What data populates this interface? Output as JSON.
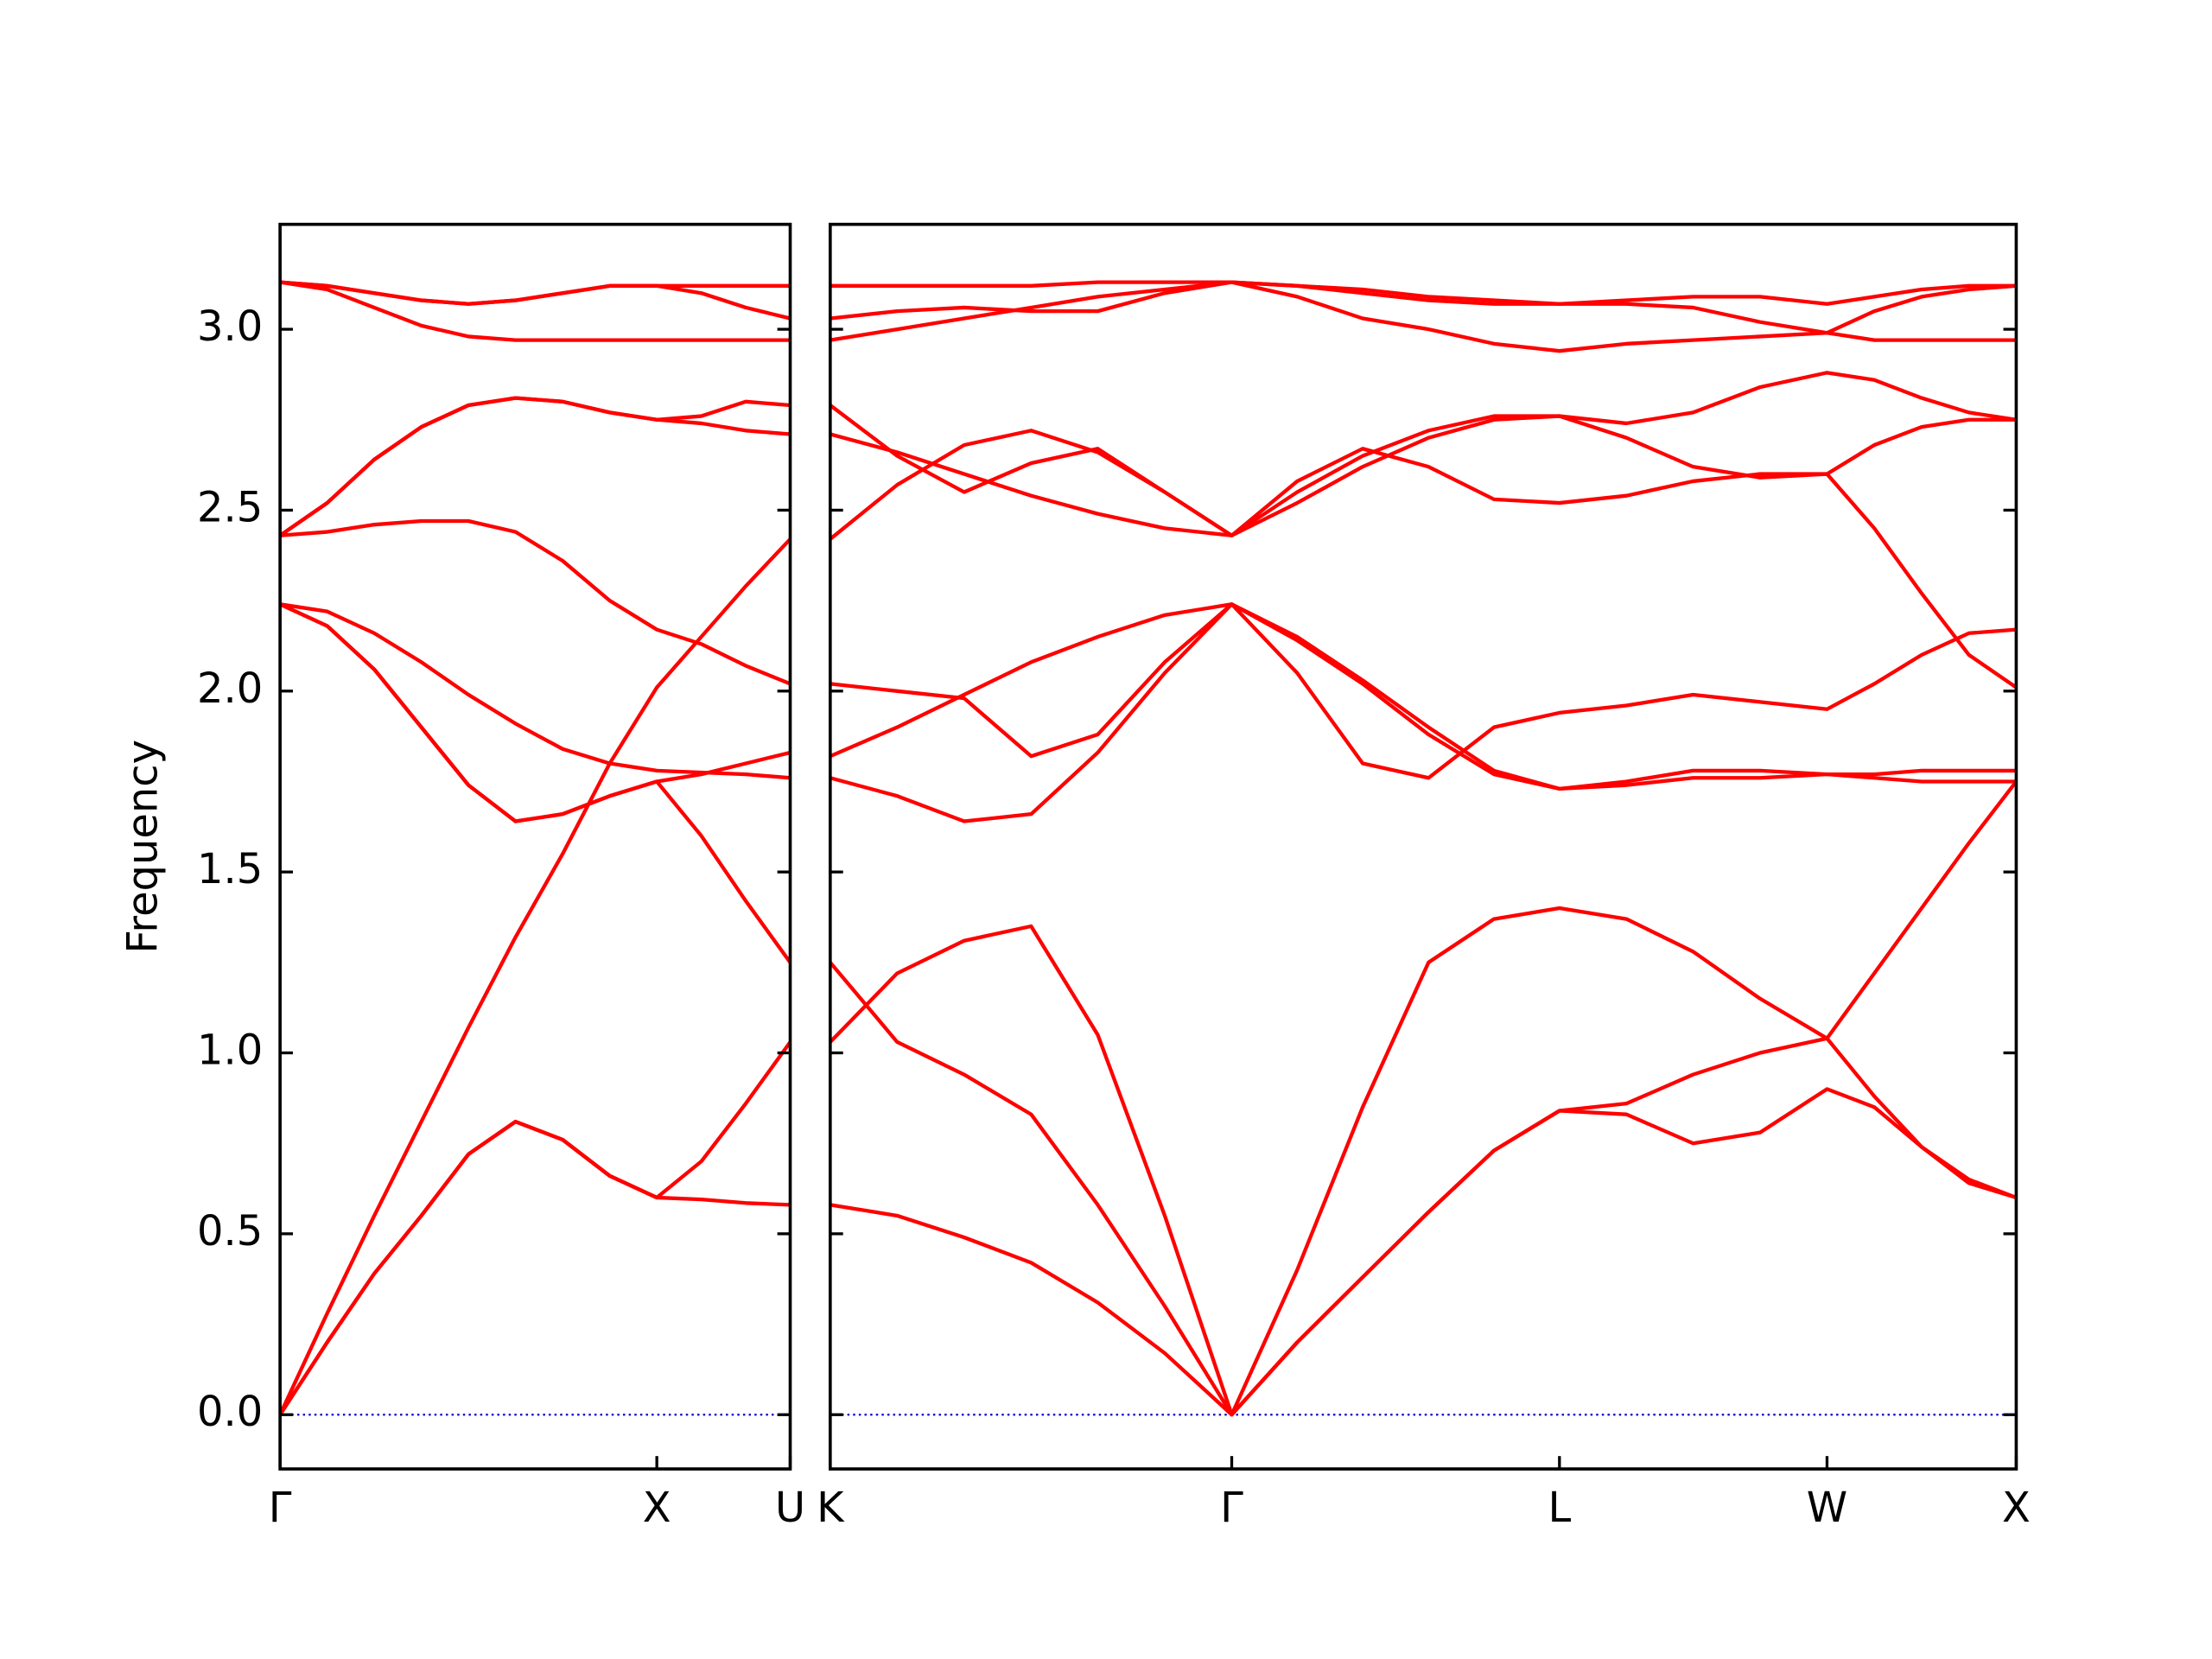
{
  "chart_data": [
    {
      "type": "line",
      "ylabel": "Frequency",
      "color": "#ff0000",
      "zero_line": true,
      "zero_line_color": "#0000cd",
      "ytick_labels": true,
      "xlim": [
        0,
        1.354
      ],
      "ylim": [
        -0.15,
        3.29
      ],
      "xticks": [
        {
          "value": 0,
          "label": "Γ"
        },
        {
          "value": 1,
          "label": "X"
        },
        {
          "value": 1.354,
          "label": "U"
        }
      ],
      "yticks": [
        {
          "value": 0,
          "label": "0.0"
        },
        0.5,
        {
          "value": 1,
          "label": "1.0"
        },
        1.5,
        {
          "value": 2,
          "label": "2.0"
        },
        2.5,
        {
          "value": 3,
          "label": "3.0"
        }
      ],
      "x": [
        0,
        0.125,
        0.25,
        0.375,
        0.5,
        0.625,
        0.75,
        0.875,
        1,
        1.118,
        1.236,
        1.354
      ],
      "series": [
        {
          "values": [
            0,
            0.2,
            0.39,
            0.55,
            0.72,
            0.81,
            0.76,
            0.66,
            0.6,
            0.595,
            0.585,
            0.58
          ]
        },
        {
          "values": [
            0,
            0.2,
            0.39,
            0.55,
            0.72,
            0.81,
            0.76,
            0.66,
            0.6,
            0.7,
            0.86,
            1.03
          ]
        },
        {
          "values": [
            0,
            0.28,
            0.55,
            0.81,
            1.07,
            1.32,
            1.55,
            1.8,
            2.01,
            2.15,
            2.29,
            2.42
          ]
        },
        {
          "values": [
            2.24,
            2.18,
            2.06,
            1.9,
            1.74,
            1.64,
            1.66,
            1.71,
            1.75,
            1.6,
            1.42,
            1.25
          ]
        },
        {
          "values": [
            2.24,
            2.18,
            2.06,
            1.9,
            1.74,
            1.64,
            1.66,
            1.71,
            1.75,
            1.77,
            1.8,
            1.83
          ]
        },
        {
          "values": [
            2.24,
            2.22,
            2.16,
            2.08,
            1.99,
            1.91,
            1.84,
            1.8,
            1.78,
            1.775,
            1.77,
            1.76
          ]
        },
        {
          "values": [
            2.43,
            2.44,
            2.46,
            2.47,
            2.47,
            2.44,
            2.36,
            2.25,
            2.17,
            2.13,
            2.07,
            2.02
          ]
        },
        {
          "values": [
            2.43,
            2.52,
            2.64,
            2.73,
            2.79,
            2.81,
            2.8,
            2.77,
            2.75,
            2.76,
            2.8,
            2.79
          ]
        },
        {
          "values": [
            2.43,
            2.52,
            2.64,
            2.73,
            2.79,
            2.81,
            2.8,
            2.77,
            2.75,
            2.74,
            2.72,
            2.71
          ]
        },
        {
          "values": [
            3.13,
            3.11,
            3.06,
            3.01,
            2.98,
            2.97,
            2.97,
            2.97,
            2.97,
            2.97,
            2.97,
            2.97
          ]
        },
        {
          "values": [
            3.13,
            3.12,
            3.1,
            3.08,
            3.07,
            3.08,
            3.1,
            3.12,
            3.12,
            3.12,
            3.12,
            3.12
          ]
        },
        {
          "values": [
            3.13,
            3.12,
            3.1,
            3.08,
            3.07,
            3.08,
            3.1,
            3.12,
            3.12,
            3.1,
            3.06,
            3.03
          ]
        }
      ]
    },
    {
      "type": "line",
      "color": "#ff0000",
      "zero_line": true,
      "zero_line_color": "#0000cd",
      "ytick_labels": false,
      "xlim": [
        1.354,
        4.488
      ],
      "ylim": [
        -0.15,
        3.29
      ],
      "xticks": [
        {
          "value": 1.354,
          "label": "K"
        },
        {
          "value": 2.415,
          "label": "Γ"
        },
        {
          "value": 3.281,
          "label": "L"
        },
        {
          "value": 3.988,
          "label": "W"
        },
        {
          "value": 4.488,
          "label": "X"
        }
      ],
      "yticks": [
        0,
        0.5,
        1,
        1.5,
        2,
        2.5,
        3
      ],
      "x": [
        1.354,
        1.531,
        1.708,
        1.885,
        2.061,
        2.238,
        2.415,
        2.588,
        2.761,
        2.935,
        3.108,
        3.281,
        3.458,
        3.634,
        3.811,
        3.988,
        4.113,
        4.238,
        4.363,
        4.488
      ],
      "series": [
        {
          "values": [
            0.58,
            0.55,
            0.49,
            0.42,
            0.31,
            0.17,
            0,
            0.2,
            0.38,
            0.56,
            0.73,
            0.84,
            0.83,
            0.75,
            0.78,
            0.9,
            0.85,
            0.74,
            0.64,
            0.6
          ]
        },
        {
          "values": [
            1.25,
            1.03,
            0.94,
            0.83,
            0.58,
            0.3,
            0,
            0.4,
            0.85,
            1.25,
            1.37,
            1.4,
            1.37,
            1.28,
            1.15,
            1.04,
            0.88,
            0.74,
            0.65,
            0.6
          ]
        },
        {
          "values": [
            1.03,
            1.22,
            1.31,
            1.35,
            1.05,
            0.55,
            0,
            0.2,
            0.38,
            0.56,
            0.73,
            0.84,
            0.86,
            0.94,
            1,
            1.04,
            1.22,
            1.4,
            1.58,
            1.75
          ]
        },
        {
          "values": [
            1.76,
            1.71,
            1.64,
            1.66,
            1.83,
            2.05,
            2.24,
            2.05,
            1.8,
            1.76,
            1.9,
            1.94,
            1.96,
            1.99,
            1.97,
            1.95,
            2.02,
            2.1,
            2.16,
            2.17
          ]
        },
        {
          "values": [
            1.82,
            1.9,
            1.99,
            2.08,
            2.15,
            2.21,
            2.24,
            2.15,
            2.03,
            1.9,
            1.78,
            1.73,
            1.75,
            1.78,
            1.78,
            1.77,
            1.77,
            1.78,
            1.78,
            1.78
          ]
        },
        {
          "values": [
            2.02,
            2,
            1.98,
            1.82,
            1.88,
            2.08,
            2.24,
            2.14,
            2.02,
            1.88,
            1.77,
            1.73,
            1.74,
            1.76,
            1.76,
            1.77,
            1.76,
            1.75,
            1.75,
            1.75
          ]
        },
        {
          "values": [
            2.42,
            2.57,
            2.68,
            2.72,
            2.66,
            2.55,
            2.43,
            2.55,
            2.65,
            2.72,
            2.76,
            2.76,
            2.74,
            2.77,
            2.84,
            2.88,
            2.86,
            2.81,
            2.77,
            2.75
          ]
        },
        {
          "values": [
            2.71,
            2.66,
            2.6,
            2.54,
            2.49,
            2.45,
            2.43,
            2.58,
            2.67,
            2.62,
            2.53,
            2.52,
            2.54,
            2.58,
            2.6,
            2.6,
            2.68,
            2.73,
            2.75,
            2.75
          ]
        },
        {
          "values": [
            2.79,
            2.65,
            2.55,
            2.63,
            2.67,
            2.55,
            2.43,
            2.52,
            2.62,
            2.7,
            2.75,
            2.76,
            2.7,
            2.62,
            2.59,
            2.6,
            2.45,
            2.27,
            2.1,
            2.01
          ]
        },
        {
          "values": [
            3.12,
            3.12,
            3.12,
            3.12,
            3.13,
            3.13,
            3.13,
            3.12,
            3.11,
            3.09,
            3.08,
            3.07,
            3.08,
            3.09,
            3.09,
            3.07,
            3.09,
            3.11,
            3.12,
            3.12
          ]
        },
        {
          "values": [
            3.03,
            3.05,
            3.06,
            3.05,
            3.05,
            3.1,
            3.13,
            3.09,
            3.03,
            3,
            2.96,
            2.94,
            2.96,
            2.97,
            2.98,
            2.99,
            2.97,
            2.97,
            2.97,
            2.97
          ]
        },
        {
          "values": [
            2.97,
            3,
            3.03,
            3.06,
            3.09,
            3.11,
            3.13,
            3.12,
            3.1,
            3.08,
            3.07,
            3.07,
            3.07,
            3.06,
            3.02,
            2.99,
            3.05,
            3.09,
            3.11,
            3.12
          ]
        }
      ]
    }
  ]
}
